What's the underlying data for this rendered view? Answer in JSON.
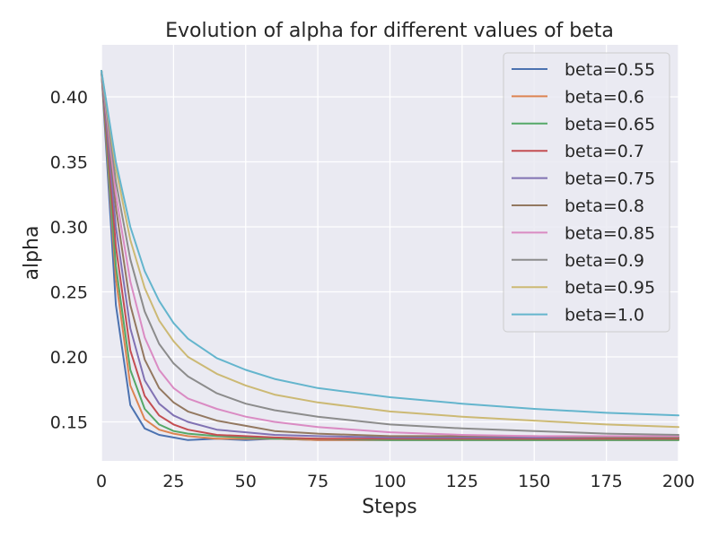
{
  "chart_data": {
    "type": "line",
    "title": "Evolution of alpha for different values of beta",
    "xlabel": "Steps",
    "ylabel": "alpha",
    "xlim": [
      0,
      200
    ],
    "ylim": [
      0.12,
      0.44
    ],
    "xticks": [
      0,
      25,
      50,
      75,
      100,
      125,
      150,
      175,
      200
    ],
    "xtick_labels": [
      "0",
      "25",
      "50",
      "75",
      "100",
      "125",
      "150",
      "175",
      "200"
    ],
    "yticks": [
      0.15,
      0.2,
      0.25,
      0.3,
      0.35,
      0.4
    ],
    "ytick_labels": [
      "0.15",
      "0.20",
      "0.25",
      "0.30",
      "0.35",
      "0.40"
    ],
    "grid": true,
    "legend_position": "top-right",
    "x": [
      0,
      5,
      10,
      15,
      20,
      25,
      30,
      40,
      50,
      60,
      75,
      100,
      125,
      150,
      175,
      200
    ],
    "series": [
      {
        "name": "beta=0.55",
        "color": "#4c72b0",
        "values": [
          0.42,
          0.24,
          0.163,
          0.145,
          0.14,
          0.138,
          0.136,
          0.137,
          0.136,
          0.137,
          0.136,
          0.136,
          0.136,
          0.136,
          0.136,
          0.136
        ]
      },
      {
        "name": "beta=0.6",
        "color": "#dd8452",
        "values": [
          0.42,
          0.26,
          0.178,
          0.152,
          0.144,
          0.141,
          0.139,
          0.137,
          0.137,
          0.137,
          0.136,
          0.136,
          0.136,
          0.136,
          0.136,
          0.136
        ]
      },
      {
        "name": "beta=0.65",
        "color": "#55a868",
        "values": [
          0.42,
          0.27,
          0.19,
          0.16,
          0.148,
          0.143,
          0.141,
          0.139,
          0.138,
          0.137,
          0.137,
          0.136,
          0.136,
          0.136,
          0.136,
          0.136
        ]
      },
      {
        "name": "beta=0.7",
        "color": "#c44e52",
        "values": [
          0.42,
          0.285,
          0.205,
          0.17,
          0.155,
          0.148,
          0.144,
          0.14,
          0.139,
          0.138,
          0.137,
          0.137,
          0.137,
          0.137,
          0.137,
          0.137
        ]
      },
      {
        "name": "beta=0.75",
        "color": "#8172b3",
        "values": [
          0.42,
          0.3,
          0.222,
          0.182,
          0.164,
          0.155,
          0.15,
          0.144,
          0.142,
          0.14,
          0.139,
          0.138,
          0.138,
          0.138,
          0.138,
          0.138
        ]
      },
      {
        "name": "beta=0.8",
        "color": "#937860",
        "values": [
          0.42,
          0.315,
          0.24,
          0.198,
          0.176,
          0.165,
          0.158,
          0.151,
          0.147,
          0.143,
          0.141,
          0.139,
          0.139,
          0.139,
          0.138,
          0.138
        ]
      },
      {
        "name": "beta=0.85",
        "color": "#da8bc3",
        "values": [
          0.42,
          0.325,
          0.258,
          0.215,
          0.19,
          0.176,
          0.168,
          0.16,
          0.154,
          0.15,
          0.146,
          0.142,
          0.14,
          0.139,
          0.139,
          0.139
        ]
      },
      {
        "name": "beta=0.9",
        "color": "#8c8c8c",
        "values": [
          0.42,
          0.335,
          0.275,
          0.235,
          0.21,
          0.195,
          0.185,
          0.172,
          0.164,
          0.159,
          0.154,
          0.148,
          0.145,
          0.143,
          0.141,
          0.14
        ]
      },
      {
        "name": "beta=0.95",
        "color": "#ccb974",
        "values": [
          0.42,
          0.345,
          0.29,
          0.253,
          0.228,
          0.212,
          0.2,
          0.187,
          0.178,
          0.171,
          0.165,
          0.158,
          0.154,
          0.151,
          0.148,
          0.146
        ]
      },
      {
        "name": "beta=1.0",
        "color": "#64b5cd",
        "values": [
          0.42,
          0.35,
          0.3,
          0.266,
          0.243,
          0.226,
          0.214,
          0.199,
          0.19,
          0.183,
          0.176,
          0.169,
          0.164,
          0.16,
          0.157,
          0.155
        ]
      }
    ]
  }
}
